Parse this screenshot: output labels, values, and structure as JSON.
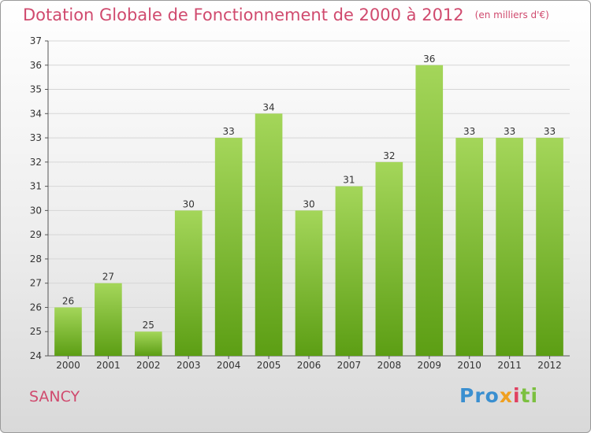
{
  "title": "Dotation Globale de Fonctionnement de 2000 à 2012",
  "unit_note": "(en milliers d'€)",
  "commune": "SANCY",
  "logo": {
    "p1": "Pro",
    "p2": "x",
    "p3": "i",
    "p4": "ti"
  },
  "colors": {
    "title": "#d04a6e",
    "bar_top": "#a4d65a",
    "bar_bottom": "#5c9e14",
    "grid": "#d6d6d6"
  },
  "chart_data": {
    "type": "bar",
    "categories": [
      "2000",
      "2001",
      "2002",
      "2003",
      "2004",
      "2005",
      "2006",
      "2007",
      "2008",
      "2009",
      "2010",
      "2011",
      "2012"
    ],
    "values": [
      26,
      27,
      25,
      30,
      33,
      34,
      30,
      31,
      32,
      36,
      33,
      33,
      33
    ],
    "ylim": [
      24,
      37
    ],
    "yticks": [
      24,
      25,
      26,
      27,
      28,
      29,
      30,
      31,
      32,
      33,
      34,
      35,
      36,
      37
    ],
    "grid": true,
    "data_labels": true
  }
}
